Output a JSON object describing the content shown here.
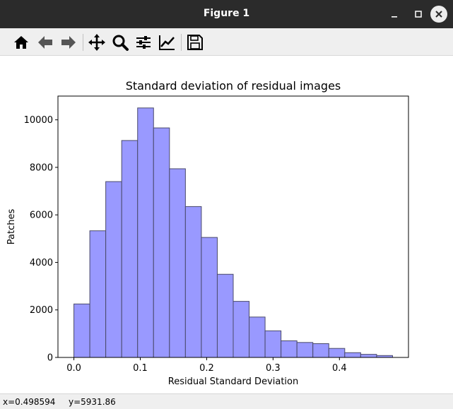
{
  "window": {
    "title": "Figure 1"
  },
  "toolbar": {
    "items": [
      {
        "icon": "home-icon"
      },
      {
        "icon": "back-arrow-icon"
      },
      {
        "icon": "forward-arrow-icon"
      },
      {
        "icon": "pan-move-icon"
      },
      {
        "icon": "zoom-magnifier-icon"
      },
      {
        "icon": "subplots-sliders-icon"
      },
      {
        "icon": "edit-axes-icon"
      },
      {
        "icon": "save-disk-icon"
      }
    ]
  },
  "status": {
    "x": "x=0.498594",
    "y": "y=5931.86"
  },
  "colors": {
    "bar_fill": "#9999ff",
    "bar_edge": "#4a4a6a",
    "titlebar": "#2b2b2b",
    "toolbar": "#efefef"
  },
  "chart_data": {
    "type": "bar",
    "title": "Standard deviation of residual images",
    "xlabel": "Residual Standard Deviation",
    "ylabel": "Patches",
    "bin_edges": [
      0.0,
      0.024,
      0.048,
      0.072,
      0.096,
      0.12,
      0.144,
      0.168,
      0.192,
      0.216,
      0.24,
      0.264,
      0.288,
      0.312,
      0.336,
      0.36,
      0.384,
      0.408,
      0.432,
      0.456,
      0.48
    ],
    "values": [
      2250,
      5330,
      7400,
      9130,
      10500,
      9660,
      7940,
      6350,
      5050,
      3500,
      2360,
      1700,
      1120,
      700,
      630,
      580,
      380,
      200,
      130,
      80
    ],
    "xlim": [
      -0.024,
      0.504
    ],
    "ylim": [
      0,
      11000
    ],
    "xticks": [
      "0.0",
      "0.1",
      "0.2",
      "0.3",
      "0.4"
    ],
    "yticks": [
      "0",
      "2000",
      "4000",
      "6000",
      "8000",
      "10000"
    ],
    "grid": false,
    "legend": "none"
  }
}
